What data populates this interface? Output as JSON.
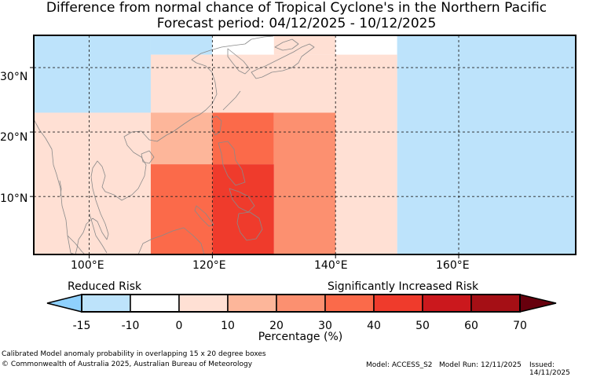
{
  "title_line1": "Difference from normal chance of Tropical Cyclone's in the Northern Pacific",
  "title_line2": "Forecast period: 04/12/2025 - 10/12/2025",
  "map": {
    "lon_range": [
      91,
      179
    ],
    "lat_range": [
      1,
      35
    ],
    "x_ticks": [
      "100°E",
      "120°E",
      "140°E",
      "160°E"
    ],
    "y_ticks": [
      "30°N",
      "20°N",
      "10°N"
    ],
    "ocean_color": "#ffffff",
    "land_outline_color": "#8a8a8a",
    "cells": [
      {
        "lon0": 91,
        "lon1": 110,
        "lat0": 23,
        "lat1": 43,
        "value": -12
      },
      {
        "lon0": 110,
        "lon1": 120,
        "lat0": 32,
        "lat1": 43,
        "value": -12
      },
      {
        "lon0": 120,
        "lon1": 130,
        "lat0": 32,
        "lat1": 43,
        "value": -5
      },
      {
        "lon0": 130,
        "lon1": 140,
        "lat0": 32,
        "lat1": 43,
        "value": 0
      },
      {
        "lon0": 140,
        "lon1": 150,
        "lat0": 32,
        "lat1": 43,
        "value": -5
      },
      {
        "lon0": 150,
        "lon1": 180,
        "lat0": 0,
        "lat1": 43,
        "value": -12
      },
      {
        "lon0": 110,
        "lon1": 120,
        "lat0": 23,
        "lat1": 32,
        "value": 0
      },
      {
        "lon0": 120,
        "lon1": 140,
        "lat0": 23,
        "lat1": 32,
        "value": 5
      },
      {
        "lon0": 140,
        "lon1": 150,
        "lat0": 0,
        "lat1": 32,
        "value": 0
      },
      {
        "lon0": 91,
        "lon1": 100,
        "lat0": 0,
        "lat1": 23,
        "value": 0
      },
      {
        "lon0": 100,
        "lon1": 110,
        "lat0": 0,
        "lat1": 23,
        "value": 5
      },
      {
        "lon0": 110,
        "lon1": 120,
        "lat0": 15,
        "lat1": 23,
        "value": 15
      },
      {
        "lon0": 120,
        "lon1": 130,
        "lat0": 15,
        "lat1": 23,
        "value": 35
      },
      {
        "lon0": 130,
        "lon1": 140,
        "lat0": 0,
        "lat1": 23,
        "value": 25
      },
      {
        "lon0": 110,
        "lon1": 120,
        "lat0": 0,
        "lat1": 15,
        "value": 35
      },
      {
        "lon0": 120,
        "lon1": 130,
        "lat0": 0,
        "lat1": 15,
        "value": 45
      }
    ]
  },
  "colorbar": {
    "boundaries": [
      -15,
      -10,
      0,
      10,
      20,
      30,
      40,
      50,
      60,
      70
    ],
    "tick_labels": [
      "-15",
      "-10",
      "0",
      "10",
      "20",
      "30",
      "40",
      "50",
      "60",
      "70"
    ],
    "colors": [
      "#bde3fb",
      "#ffffff",
      "#ffe0d4",
      "#fdb69a",
      "#fc9070",
      "#fb6a4a",
      "#ef3b2c",
      "#cb181d",
      "#a50f15"
    ],
    "under_color": "#8fd1fd",
    "over_color": "#67000d",
    "label": "Percentage (%)",
    "reduced_label": "Reduced Risk",
    "increased_label": "Significantly Increased Risk"
  },
  "footer": {
    "description": "Calibrated Model anomaly probability in overlapping 15 x 20 degree boxes",
    "copyright": "© Commonwealth of Australia 2025, Australian Bureau of Meteorology",
    "model": "Model: ACCESS_S2",
    "model_run": "Model Run: 12/11/2025",
    "issued": "Issued: 14/11/2025"
  }
}
